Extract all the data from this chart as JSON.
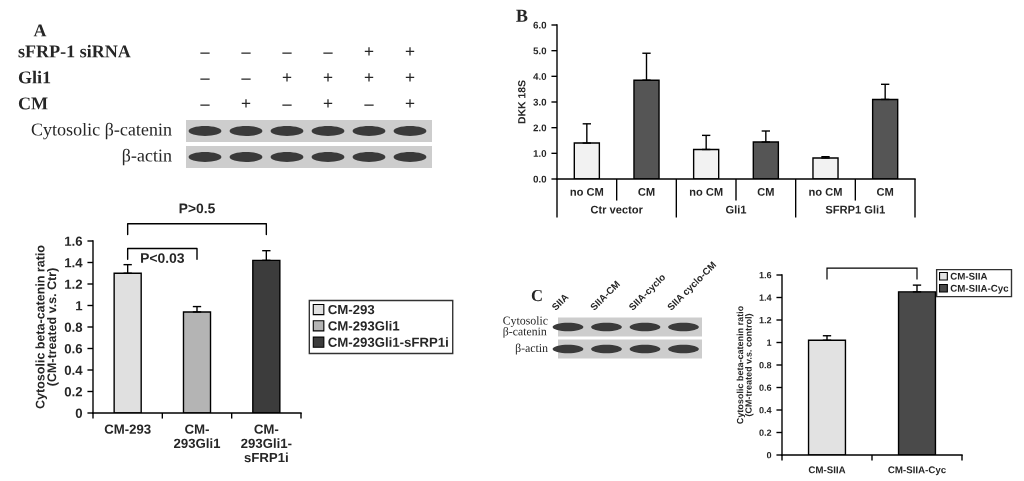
{
  "chart_data": [
    {
      "type": "other",
      "title": "A",
      "y_categories": [
        "sFRP-1 siRNA",
        "Gli1",
        "CM",
        "Cytosolic β-catenin",
        "β-actin"
      ],
      "cell_labels": [
        [
          "–",
          "–",
          "–",
          "–",
          "+",
          "+"
        ],
        [
          "–",
          "–",
          "+",
          "+",
          "+",
          "+"
        ],
        [
          "–",
          "+",
          "–",
          "+",
          "–",
          "+"
        ],
        null,
        null
      ]
    },
    {
      "type": "bar",
      "categories": [
        "CM-293",
        "CM-\n293Gli1",
        "CM-\n293Gli1-\nsFRP1i"
      ],
      "series": [
        {
          "name": "CM-293",
          "color": "#e0e0e0",
          "values": [
            1.3,
            null,
            null
          ],
          "errors": [
            [
              1.3,
              1.38
            ],
            null,
            null
          ]
        },
        {
          "name": "CM-293Gli1",
          "color": "#b4b4b4",
          "values": [
            null,
            0.94,
            null
          ],
          "errors": [
            null,
            [
              0.94,
              0.99
            ],
            null
          ]
        },
        {
          "name": "CM-293Gli1-sFRP1i",
          "color": "#3c3c3c",
          "values": [
            null,
            null,
            1.42
          ],
          "errors": [
            null,
            null,
            [
              1.42,
              1.51
            ]
          ]
        }
      ],
      "ylabel": "Cytosolic beta-catenin ratio\n(CM-treated v.s. Ctr)",
      "ylim": [
        0,
        1.6
      ],
      "yticks": [
        0,
        0.2,
        0.4,
        0.6,
        0.8,
        1,
        1.2,
        1.4,
        1.6
      ],
      "legend": "right",
      "annotations": [
        "P<0.03",
        "P>0.5"
      ]
    },
    {
      "type": "bar",
      "title": "B",
      "categories": [
        "Ctr vector",
        "Gli1",
        "SFRP1 Gli1"
      ],
      "series": [
        {
          "name": "no CM",
          "color": "#f2f2f2",
          "values": [
            1.4,
            1.15,
            0.82
          ],
          "errors": [
            [
              1.4,
              2.15
            ],
            [
              1.15,
              1.7
            ],
            [
              0.82,
              0.87
            ]
          ]
        },
        {
          "name": "CM",
          "color": "#555555",
          "values": [
            3.85,
            1.44,
            3.1
          ],
          "errors": [
            [
              3.85,
              4.9
            ],
            [
              1.44,
              1.87
            ],
            [
              3.1,
              3.69
            ]
          ]
        }
      ],
      "ylabel": "DKK 18S",
      "ylim": [
        0,
        6
      ],
      "yticks": [
        {
          "value": 0,
          "label": "0.0"
        },
        {
          "value": 1,
          "label": "1.0"
        },
        {
          "value": 2,
          "label": "2.0"
        },
        {
          "value": 3,
          "label": "3.0"
        },
        {
          "value": 4,
          "label": "4.0"
        },
        {
          "value": 5,
          "label": "5.0"
        },
        {
          "value": 6,
          "label": "6.0"
        }
      ]
    },
    {
      "type": "other",
      "title": "C",
      "categories": [
        "SIIA",
        "SIIA-CM",
        "SIIA-cyclo",
        "SIIA cyclo-CM"
      ],
      "y_categories": [
        "Cytosolic\nβ-catenin",
        "β-actin"
      ]
    },
    {
      "type": "bar",
      "categories": [
        "CM-SIIA",
        "CM-SIIA-Cyc"
      ],
      "series": [
        {
          "name": "CM-SIIA",
          "color": "#e2e2e2",
          "values": [
            1.02,
            null
          ],
          "errors": [
            [
              1.02,
              1.06
            ],
            null
          ]
        },
        {
          "name": "CM-SIIA-Cyc",
          "color": "#4a4a4a",
          "values": [
            null,
            1.45
          ],
          "errors": [
            null,
            [
              1.45,
              1.51
            ]
          ]
        }
      ],
      "ylabel": "Cytosolic beta-catenin ratio\n(CM-treated v.s. control)",
      "ylim": [
        0,
        1.6
      ],
      "yticks": [
        0,
        0.2,
        0.4,
        0.6,
        0.8,
        1,
        1.2,
        1.4,
        1.6
      ],
      "legend": "top right"
    }
  ]
}
